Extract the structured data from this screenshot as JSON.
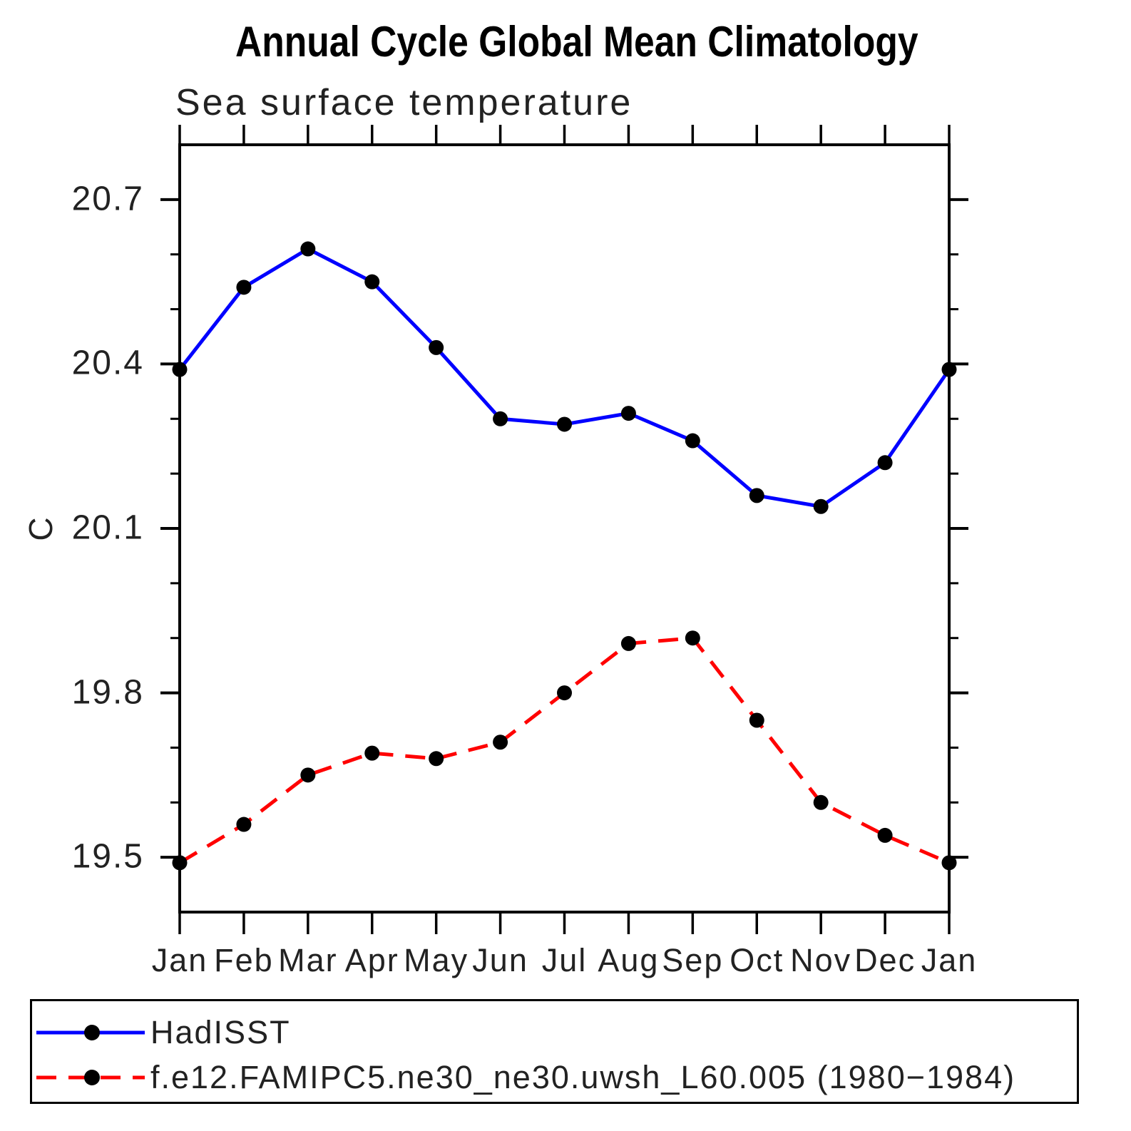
{
  "page": {
    "background": "#ffffff"
  },
  "chart_data": {
    "type": "line",
    "title": "Annual Cycle Global Mean Climatology",
    "subtitle": "Sea surface temperature",
    "ylabel": "C",
    "xlabel": "",
    "categories": [
      "Jan",
      "Feb",
      "Mar",
      "Apr",
      "May",
      "Jun",
      "Jul",
      "Aug",
      "Sep",
      "Oct",
      "Nov",
      "Dec",
      "Jan"
    ],
    "series": [
      {
        "name": "HadISST",
        "color": "#0000ff",
        "line_style": "solid",
        "line_width": 5,
        "marker": "filled-circle",
        "marker_color": "#000000",
        "values": [
          20.39,
          20.54,
          20.61,
          20.55,
          20.43,
          20.3,
          20.29,
          20.31,
          20.26,
          20.16,
          20.14,
          20.22,
          20.39
        ]
      },
      {
        "name": "f.e12.FAMIPC5.ne30_ne30.uwsh_L60.005 (1980−1984)",
        "color": "#ff0000",
        "line_style": "dashed",
        "line_width": 5,
        "marker": "filled-circle",
        "marker_color": "#000000",
        "values": [
          19.49,
          19.56,
          19.65,
          19.69,
          19.68,
          19.71,
          19.8,
          19.89,
          19.9,
          19.75,
          19.6,
          19.54,
          19.49
        ]
      }
    ],
    "ylim": [
      19.4,
      20.8
    ],
    "y_major_ticks": [
      "20.7",
      "20.4",
      "20.1",
      "19.8",
      "19.5"
    ],
    "y_minor_ticks": [
      20.6,
      20.5,
      20.3,
      20.2,
      20.0,
      19.9,
      19.7,
      19.6
    ],
    "grid": false,
    "legend_position": "bottom-left-box",
    "axis_color": "#000000"
  }
}
